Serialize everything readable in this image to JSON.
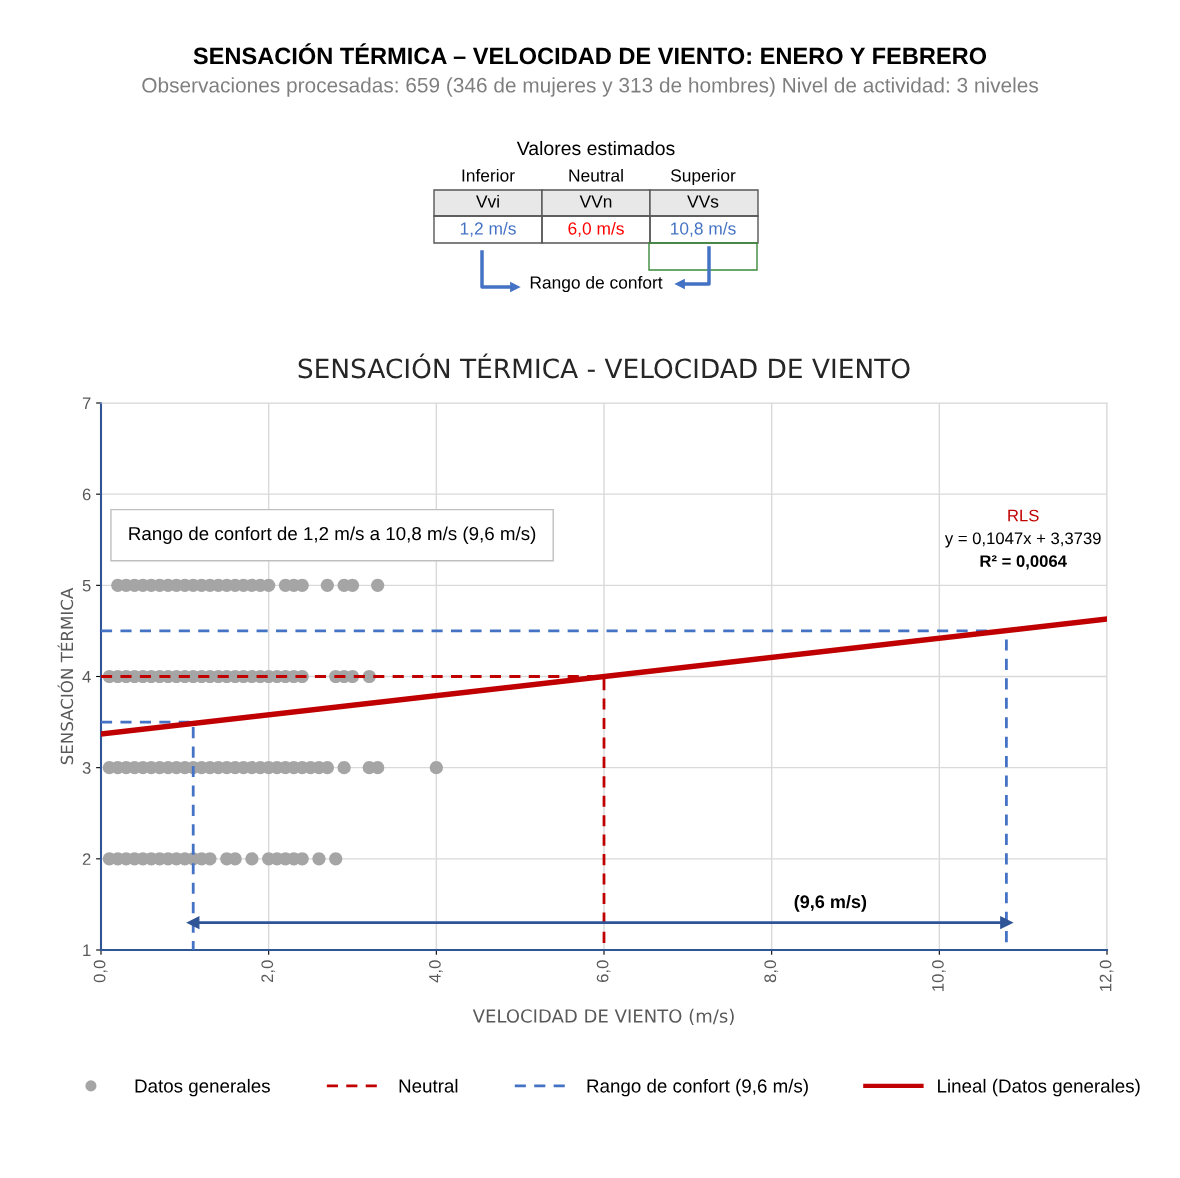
{
  "chart_data": [
    {
      "type": "other",
      "title": "SENSACIÓN TÉRMICA – VELOCIDAD DE VIENTO: ENERO Y FEBRERO",
      "subtitle": "Observaciones procesadas: 659 (346 de mujeres y 313 de hombres) Nivel de actividad: 3 niveles",
      "annotations": [
        "Valores estimados",
        "Inferior",
        "Neutral",
        "Superior",
        "Vvi",
        "VVn",
        "VVs",
        "1,2 m/s",
        "6,0 m/s",
        "10,8 m/s",
        "Rango de confort"
      ]
    },
    {
      "type": "scatter",
      "title": "SENSACIÓN TÉRMICA - VELOCIDAD DE VIENTO",
      "xlabel": "VELOCIDAD DE VIENTO (m/s)",
      "ylabel": "SENSACIÓN TÉRMICA",
      "xlim": [
        0,
        12
      ],
      "xticks": [
        {
          "value": 0,
          "label": "0,0"
        },
        {
          "value": 2,
          "label": "2,0"
        },
        {
          "value": 4,
          "label": "4,0"
        },
        {
          "value": 6,
          "label": "6,0"
        },
        {
          "value": 8,
          "label": "8,0"
        },
        {
          "value": 10,
          "label": "10,0"
        },
        {
          "value": 12,
          "label": "12,0"
        }
      ],
      "ylim": [
        1,
        7
      ],
      "yticks": [
        1,
        2,
        3,
        4,
        5,
        6,
        7
      ],
      "grid": true,
      "legend": "bottom",
      "series": [
        {
          "type": "scatter",
          "name": "Datos generales",
          "color": "#a5a5a5",
          "marker": "circle",
          "x": [
            0.2,
            0.3,
            0.4,
            0.5,
            0.6,
            0.7,
            0.8,
            0.9,
            1.0,
            1.1,
            1.2,
            1.3,
            1.4,
            1.5,
            1.6,
            1.7,
            1.8,
            1.9,
            2.0,
            2.2,
            2.3,
            2.4,
            2.7,
            2.9,
            3.0,
            3.3,
            0.1,
            0.2,
            0.3,
            0.4,
            0.5,
            0.6,
            0.7,
            0.8,
            0.9,
            1.0,
            1.1,
            1.2,
            1.3,
            1.4,
            1.5,
            1.6,
            1.7,
            1.8,
            1.9,
            2.0,
            2.1,
            2.2,
            2.3,
            2.4,
            2.8,
            2.9,
            3.0,
            3.2,
            0.1,
            0.2,
            0.3,
            0.4,
            0.5,
            0.6,
            0.7,
            0.8,
            0.9,
            1.0,
            1.1,
            1.2,
            1.3,
            1.4,
            1.5,
            1.6,
            1.7,
            1.8,
            1.9,
            2.0,
            2.1,
            2.2,
            2.3,
            2.4,
            2.5,
            2.6,
            2.7,
            2.9,
            3.2,
            3.3,
            4.0,
            0.1,
            0.2,
            0.3,
            0.4,
            0.5,
            0.6,
            0.7,
            0.8,
            0.9,
            1.0,
            1.1,
            1.2,
            1.3,
            1.5,
            1.6,
            1.8,
            2.0,
            2.1,
            2.2,
            2.3,
            2.4,
            2.6,
            2.8
          ],
          "values": [
            5,
            5,
            5,
            5,
            5,
            5,
            5,
            5,
            5,
            5,
            5,
            5,
            5,
            5,
            5,
            5,
            5,
            5,
            5,
            5,
            5,
            5,
            5,
            5,
            5,
            5,
            4,
            4,
            4,
            4,
            4,
            4,
            4,
            4,
            4,
            4,
            4,
            4,
            4,
            4,
            4,
            4,
            4,
            4,
            4,
            4,
            4,
            4,
            4,
            4,
            4,
            4,
            4,
            4,
            3,
            3,
            3,
            3,
            3,
            3,
            3,
            3,
            3,
            3,
            3,
            3,
            3,
            3,
            3,
            3,
            3,
            3,
            3,
            3,
            3,
            3,
            3,
            3,
            3,
            3,
            3,
            3,
            3,
            3,
            3,
            2,
            2,
            2,
            2,
            2,
            2,
            2,
            2,
            2,
            2,
            2,
            2,
            2,
            2,
            2,
            2,
            2,
            2,
            2,
            2,
            2,
            2,
            2
          ]
        },
        {
          "type": "line",
          "name": "Neutral",
          "color": "#c00000",
          "line_style": "dashed",
          "x": [
            0,
            6,
            6
          ],
          "values": [
            4,
            4,
            1
          ]
        },
        {
          "type": "line",
          "name": "Rango de confort (9,6 m/s)",
          "color": "#4472c4",
          "line_style": "dashed",
          "x": [
            0,
            1.1,
            1.1
          ],
          "values": [
            3.5,
            3.5,
            1
          ]
        },
        {
          "type": "line",
          "color": "#4472c4",
          "line_style": "dashed",
          "x": [
            0,
            10.8,
            10.8
          ],
          "values": [
            4.5,
            4.5,
            1
          ]
        },
        {
          "type": "line",
          "color": "#2f5597",
          "line_style": "solid",
          "marker": "triangle",
          "x": [
            1.1,
            10.8
          ],
          "values": [
            1.3,
            1.3
          ]
        },
        {
          "type": "line",
          "name": "Lineal (Datos generales)",
          "color": "#c00000",
          "line_style": "solid",
          "x": [
            0,
            12
          ],
          "values": [
            3.37,
            4.63
          ]
        }
      ],
      "annotations": [
        "Rango de confort de 1,2 m/s a 10,8 m/s (9,6 m/s)",
        "RLS",
        "y = 0,1047x + 3,3739",
        "R² = 0,0064",
        "(9,6 m/s)"
      ]
    }
  ]
}
